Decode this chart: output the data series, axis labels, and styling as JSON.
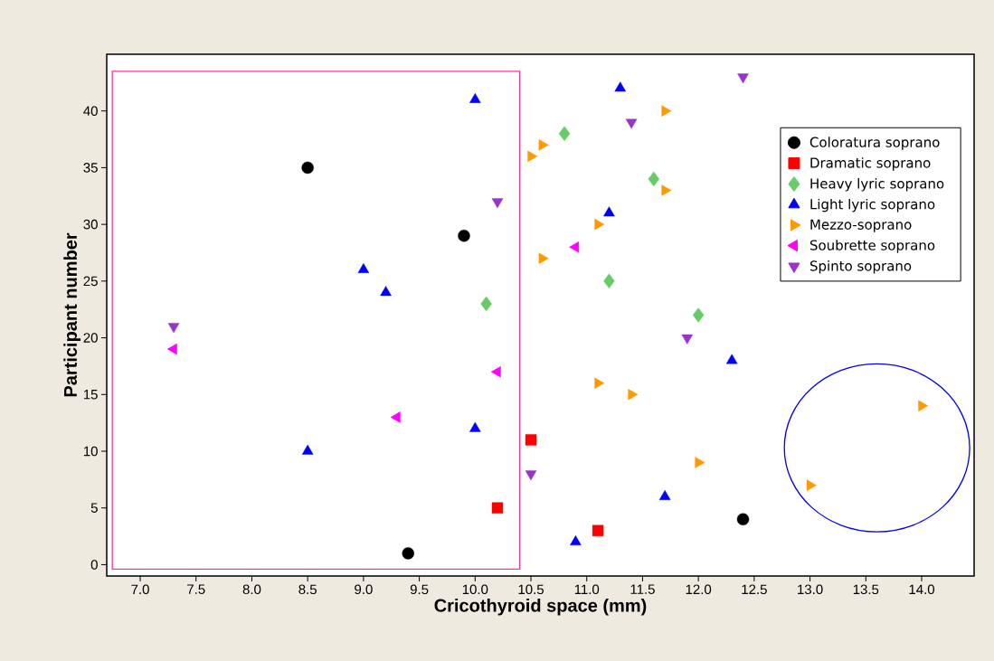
{
  "chart_data": {
    "type": "scatter",
    "xlabel": "Cricothyroid space (mm)",
    "ylabel": "Participant number",
    "xlim": [
      6.7,
      14.47
    ],
    "ylim": [
      -1,
      45
    ],
    "xticks": [
      {
        "value": 7,
        "label": "7.0"
      },
      7.5,
      {
        "value": 8,
        "label": "8.0"
      },
      8.5,
      {
        "value": 9,
        "label": "9.0"
      },
      9.5,
      {
        "value": 10,
        "label": "10.0"
      },
      10.5,
      {
        "value": 11,
        "label": "11.0"
      },
      11.5,
      {
        "value": 12,
        "label": "12.0"
      },
      12.5,
      {
        "value": 13,
        "label": "13.0"
      },
      13.5,
      {
        "value": 14,
        "label": "14.0"
      }
    ],
    "yticks": [
      0,
      5,
      10,
      15,
      20,
      25,
      30,
      35,
      40
    ],
    "grid": false,
    "legend": "top right",
    "series": [
      {
        "name": "Coloratura soprano",
        "color": "#000000",
        "marker": "circle",
        "x": [
          8.5,
          9.9,
          9.4,
          12.4
        ],
        "values": [
          35,
          29,
          1,
          4
        ]
      },
      {
        "name": "Dramatic soprano",
        "color": "#ff0000",
        "marker": "square",
        "x": [
          10.2,
          10.5,
          11.1
        ],
        "values": [
          5,
          11,
          3
        ]
      },
      {
        "name": "Heavy lyric soprano",
        "color": "#66cc66",
        "marker": "diamond",
        "x": [
          10.8,
          11.6,
          10.1,
          11.2,
          12.0
        ],
        "values": [
          38,
          34,
          23,
          25,
          22
        ]
      },
      {
        "name": "Light lyric soprano",
        "color": "#0000ff",
        "marker": "triangle",
        "x": [
          10.0,
          11.3,
          9.0,
          9.2,
          11.2,
          12.3,
          8.5,
          10.0,
          11.7,
          10.9
        ],
        "values": [
          41,
          42,
          26,
          24,
          31,
          18,
          10,
          12,
          6,
          2
        ]
      },
      {
        "name": "Mezzo-soprano",
        "color": "#ff9900",
        "marker": "triangle-right",
        "x": [
          10.5,
          10.6,
          11.7,
          11.7,
          11.1,
          10.6,
          11.1,
          11.4,
          12.0,
          13.0,
          14.0
        ],
        "values": [
          36,
          37,
          40,
          33,
          30,
          27,
          16,
          15,
          9,
          7,
          14
        ]
      },
      {
        "name": "Soubrette soprano",
        "color": "#ff00ff",
        "marker": "triangle-left",
        "x": [
          7.3,
          10.2,
          9.3,
          10.9
        ],
        "values": [
          19,
          17,
          13,
          28
        ]
      },
      {
        "name": "Spinto soprano",
        "color": "#9933cc",
        "marker": "triangle-down",
        "x": [
          12.4,
          11.4,
          10.2,
          7.3,
          11.9,
          10.5
        ],
        "values": [
          43,
          39,
          32,
          21,
          20,
          8
        ]
      }
    ]
  }
}
